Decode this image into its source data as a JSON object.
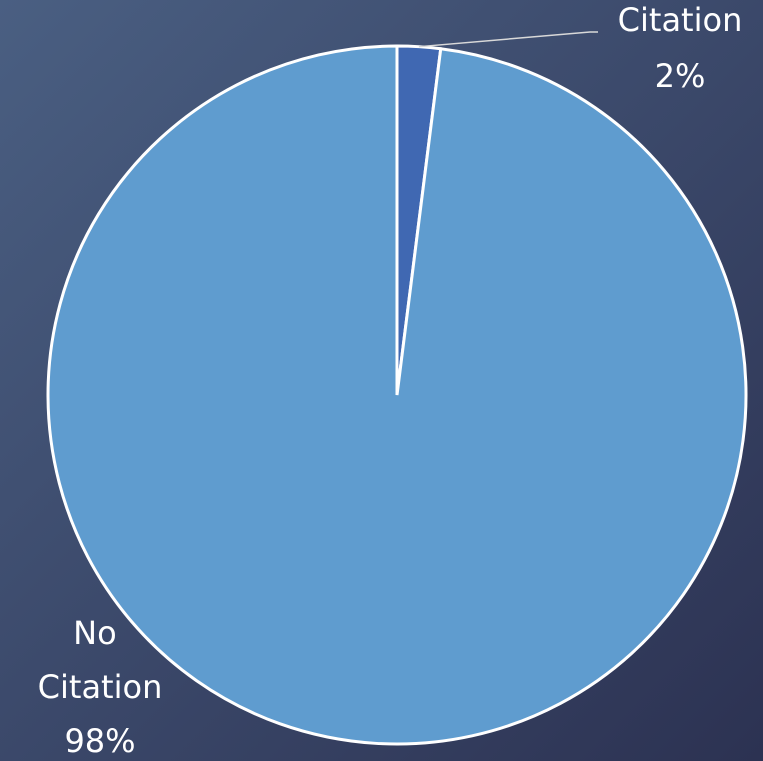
{
  "chart_data": {
    "type": "pie",
    "categories": [
      "Citation",
      "No Citation"
    ],
    "values": [
      2,
      98
    ],
    "value_labels": [
      "2%",
      "98%"
    ],
    "colors": [
      "#4068b2",
      "#5f9ccf"
    ]
  }
}
